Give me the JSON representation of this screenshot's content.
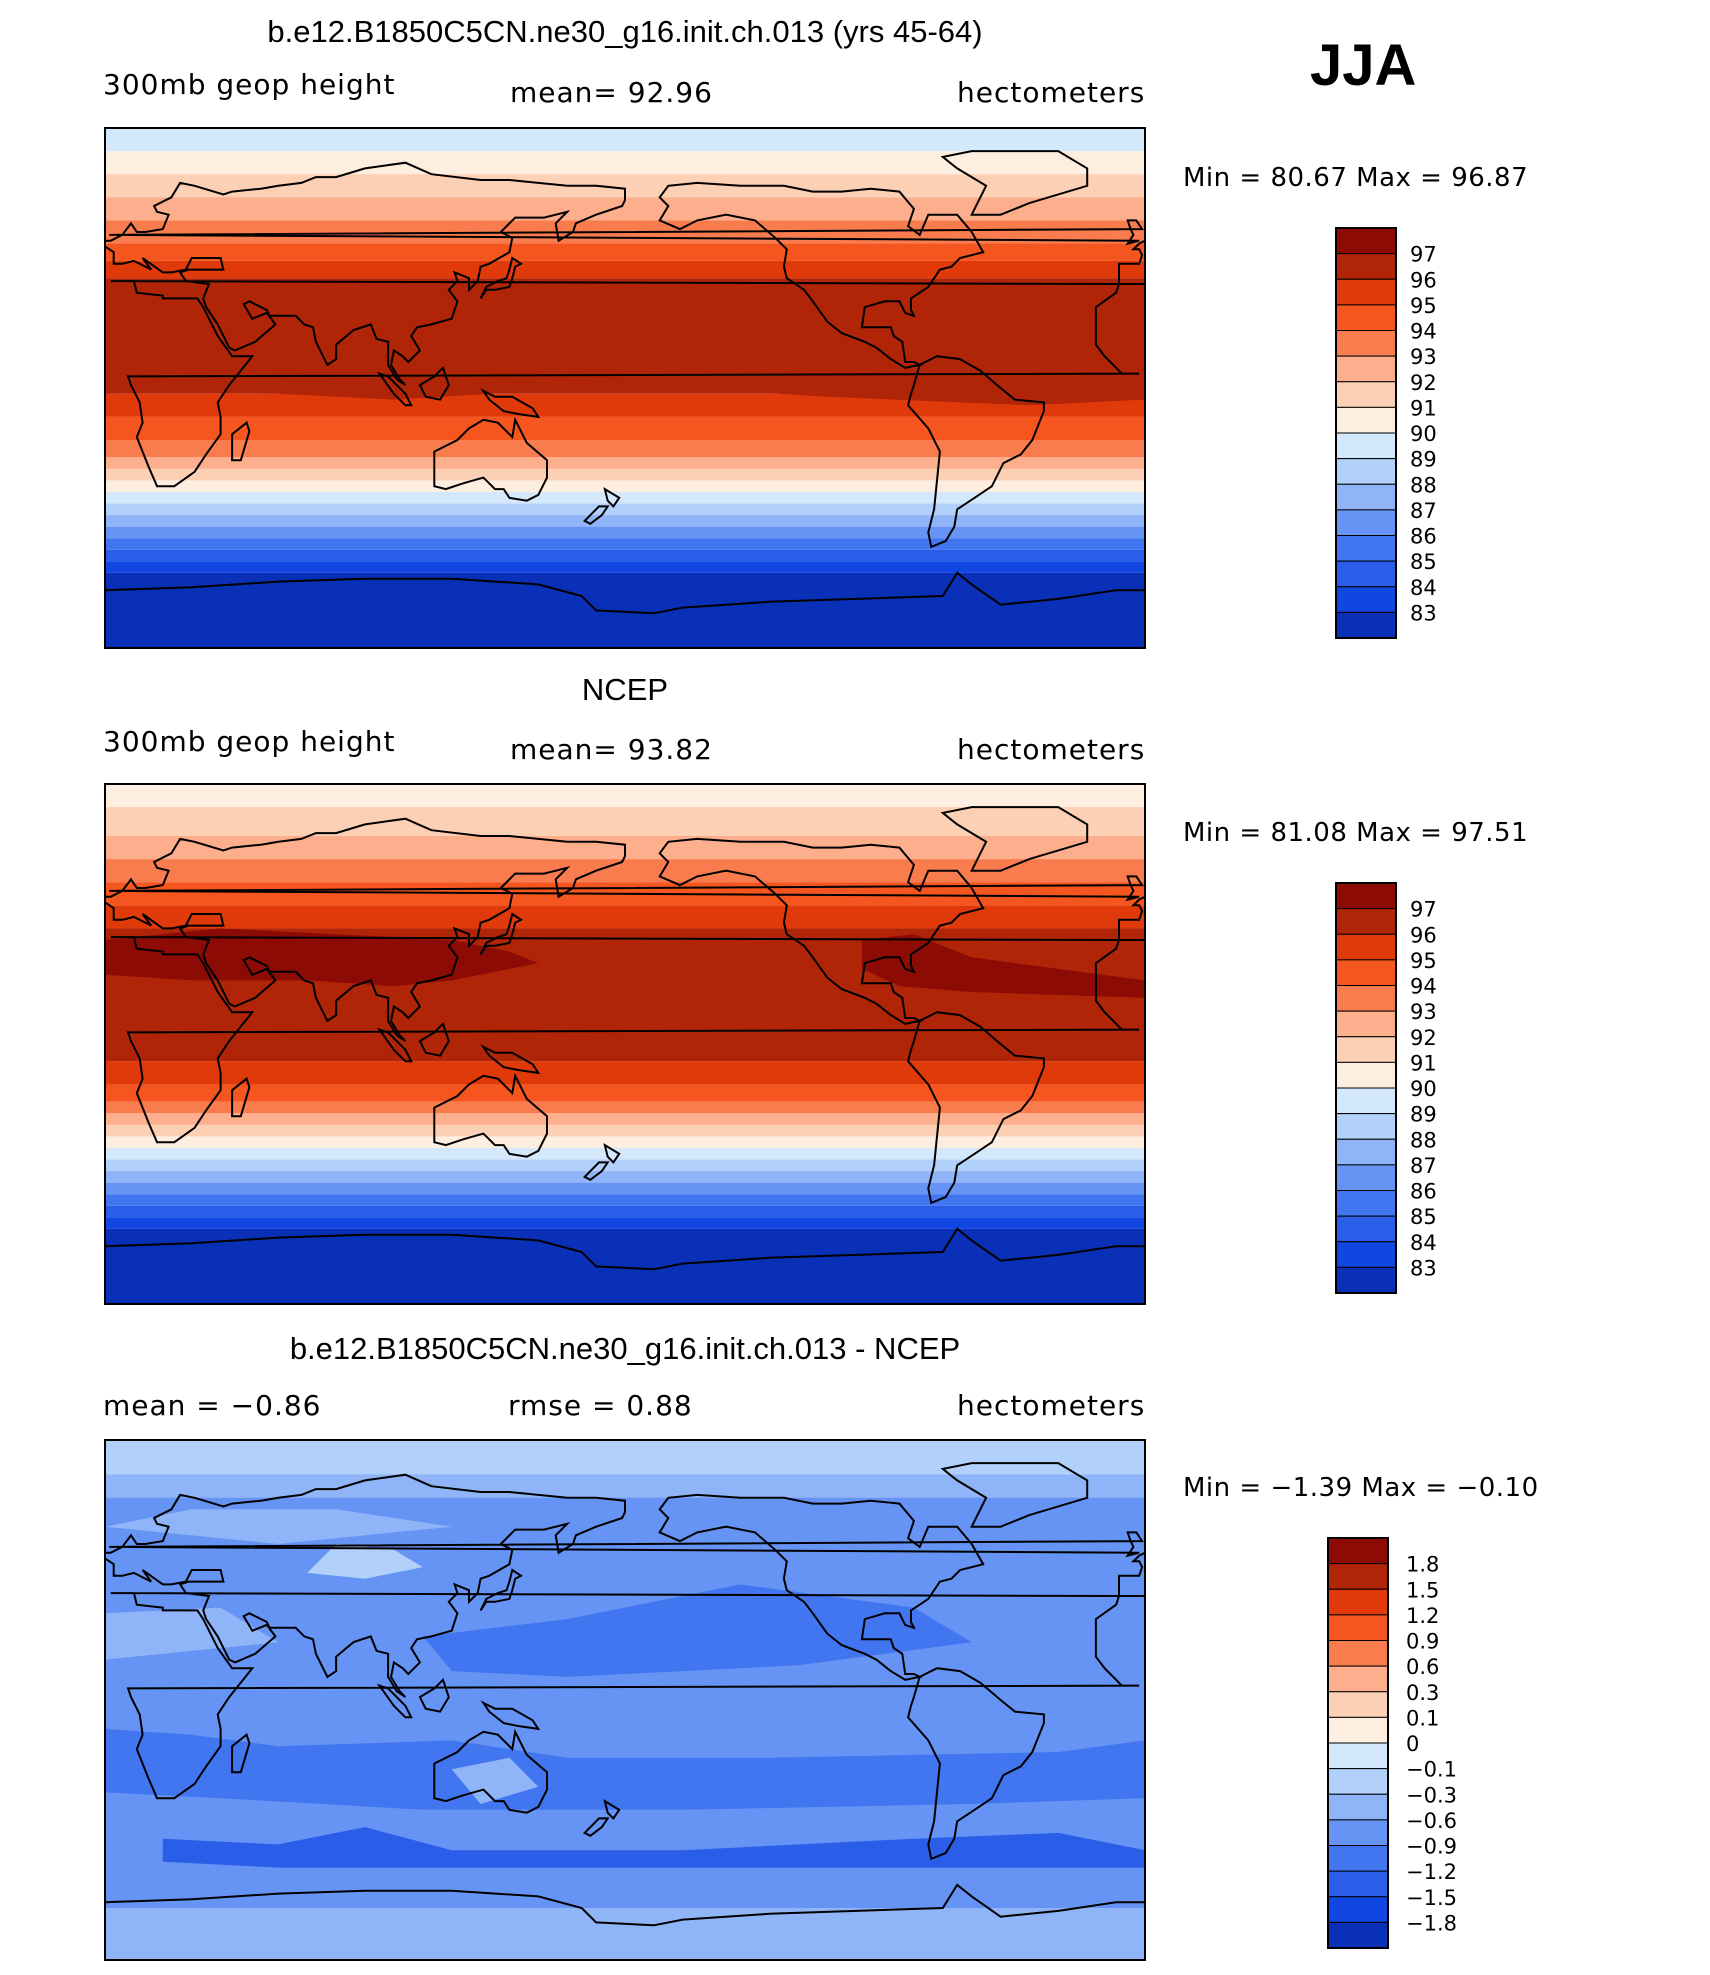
{
  "season": "JJA",
  "colors": {
    "positive": [
      "#fdeee0",
      "#fcd0b4",
      "#fcae8d",
      "#f97c4f",
      "#f5561f",
      "#e03a0a",
      "#b02408",
      "#8c0c05"
    ],
    "negative": [
      "#d4e8fb",
      "#b1d1fa",
      "#8fb4f7",
      "#6694f5",
      "#4276f0",
      "#2a5de8",
      "#1246e0",
      "#0a30b8",
      "#001a8a"
    ]
  },
  "panels": [
    {
      "title": "b.e12.B1850C5CN.ne30_g16.init.ch.013 (yrs 45-64)",
      "left": "300mb  geop  height",
      "mid": "mean=   92.96",
      "right": "hectometers",
      "minmax": "Min  =    80.67  Max  =    96.87",
      "legend_labels": [
        "97",
        "96",
        "95",
        "94",
        "93",
        "92",
        "91",
        "90",
        "89",
        "88",
        "87",
        "86",
        "85",
        "84",
        "83"
      ]
    },
    {
      "title": "NCEP",
      "left": "300mb  geop  height",
      "mid": "mean=   93.82",
      "right": "hectometers",
      "minmax": "Min  =    81.08  Max  =    97.51",
      "legend_labels": [
        "97",
        "96",
        "95",
        "94",
        "93",
        "92",
        "91",
        "90",
        "89",
        "88",
        "87",
        "86",
        "85",
        "84",
        "83"
      ]
    },
    {
      "title": "b.e12.B1850C5CN.ne30_g16.init.ch.013 - NCEP",
      "left": "mean  =    −0.86",
      "mid": "rmse  =     0.88",
      "right": "hectometers",
      "minmax": "Min  =   −1.39  Max  =    −0.10",
      "legend_labels": [
        "1.8",
        "1.5",
        "1.2",
        "0.9",
        "0.6",
        "0.3",
        "0.1",
        "0",
        "−0.1",
        "−0.3",
        "−0.6",
        "−0.9",
        "−1.2",
        "−1.5",
        "−1.8"
      ]
    }
  ],
  "chart_data": [
    {
      "type": "heatmap",
      "title": "b.e12.B1850C5CN.ne30_g16.init.ch.013 (yrs 45-64)",
      "variable": "300mb  geop  height",
      "units": "hectometers",
      "mean": 92.96,
      "min": 80.67,
      "max": 96.87,
      "contour_levels": [
        83,
        84,
        85,
        86,
        87,
        88,
        89,
        90,
        91,
        92,
        93,
        94,
        95,
        96,
        97
      ]
    },
    {
      "type": "heatmap",
      "title": "NCEP",
      "variable": "300mb  geop  height",
      "units": "hectometers",
      "mean": 93.82,
      "min": 81.08,
      "max": 97.51,
      "contour_levels": [
        83,
        84,
        85,
        86,
        87,
        88,
        89,
        90,
        91,
        92,
        93,
        94,
        95,
        96,
        97
      ]
    },
    {
      "type": "heatmap",
      "title": "b.e12.B1850C5CN.ne30_g16.init.ch.013 - NCEP",
      "units": "hectometers",
      "mean": -0.86,
      "rmse": 0.88,
      "min": -1.39,
      "max": -0.1,
      "contour_levels": [
        -1.8,
        -1.5,
        -1.2,
        -0.9,
        -0.6,
        -0.3,
        -0.1,
        0,
        0.1,
        0.3,
        0.6,
        0.9,
        1.2,
        1.5,
        1.8
      ]
    }
  ]
}
